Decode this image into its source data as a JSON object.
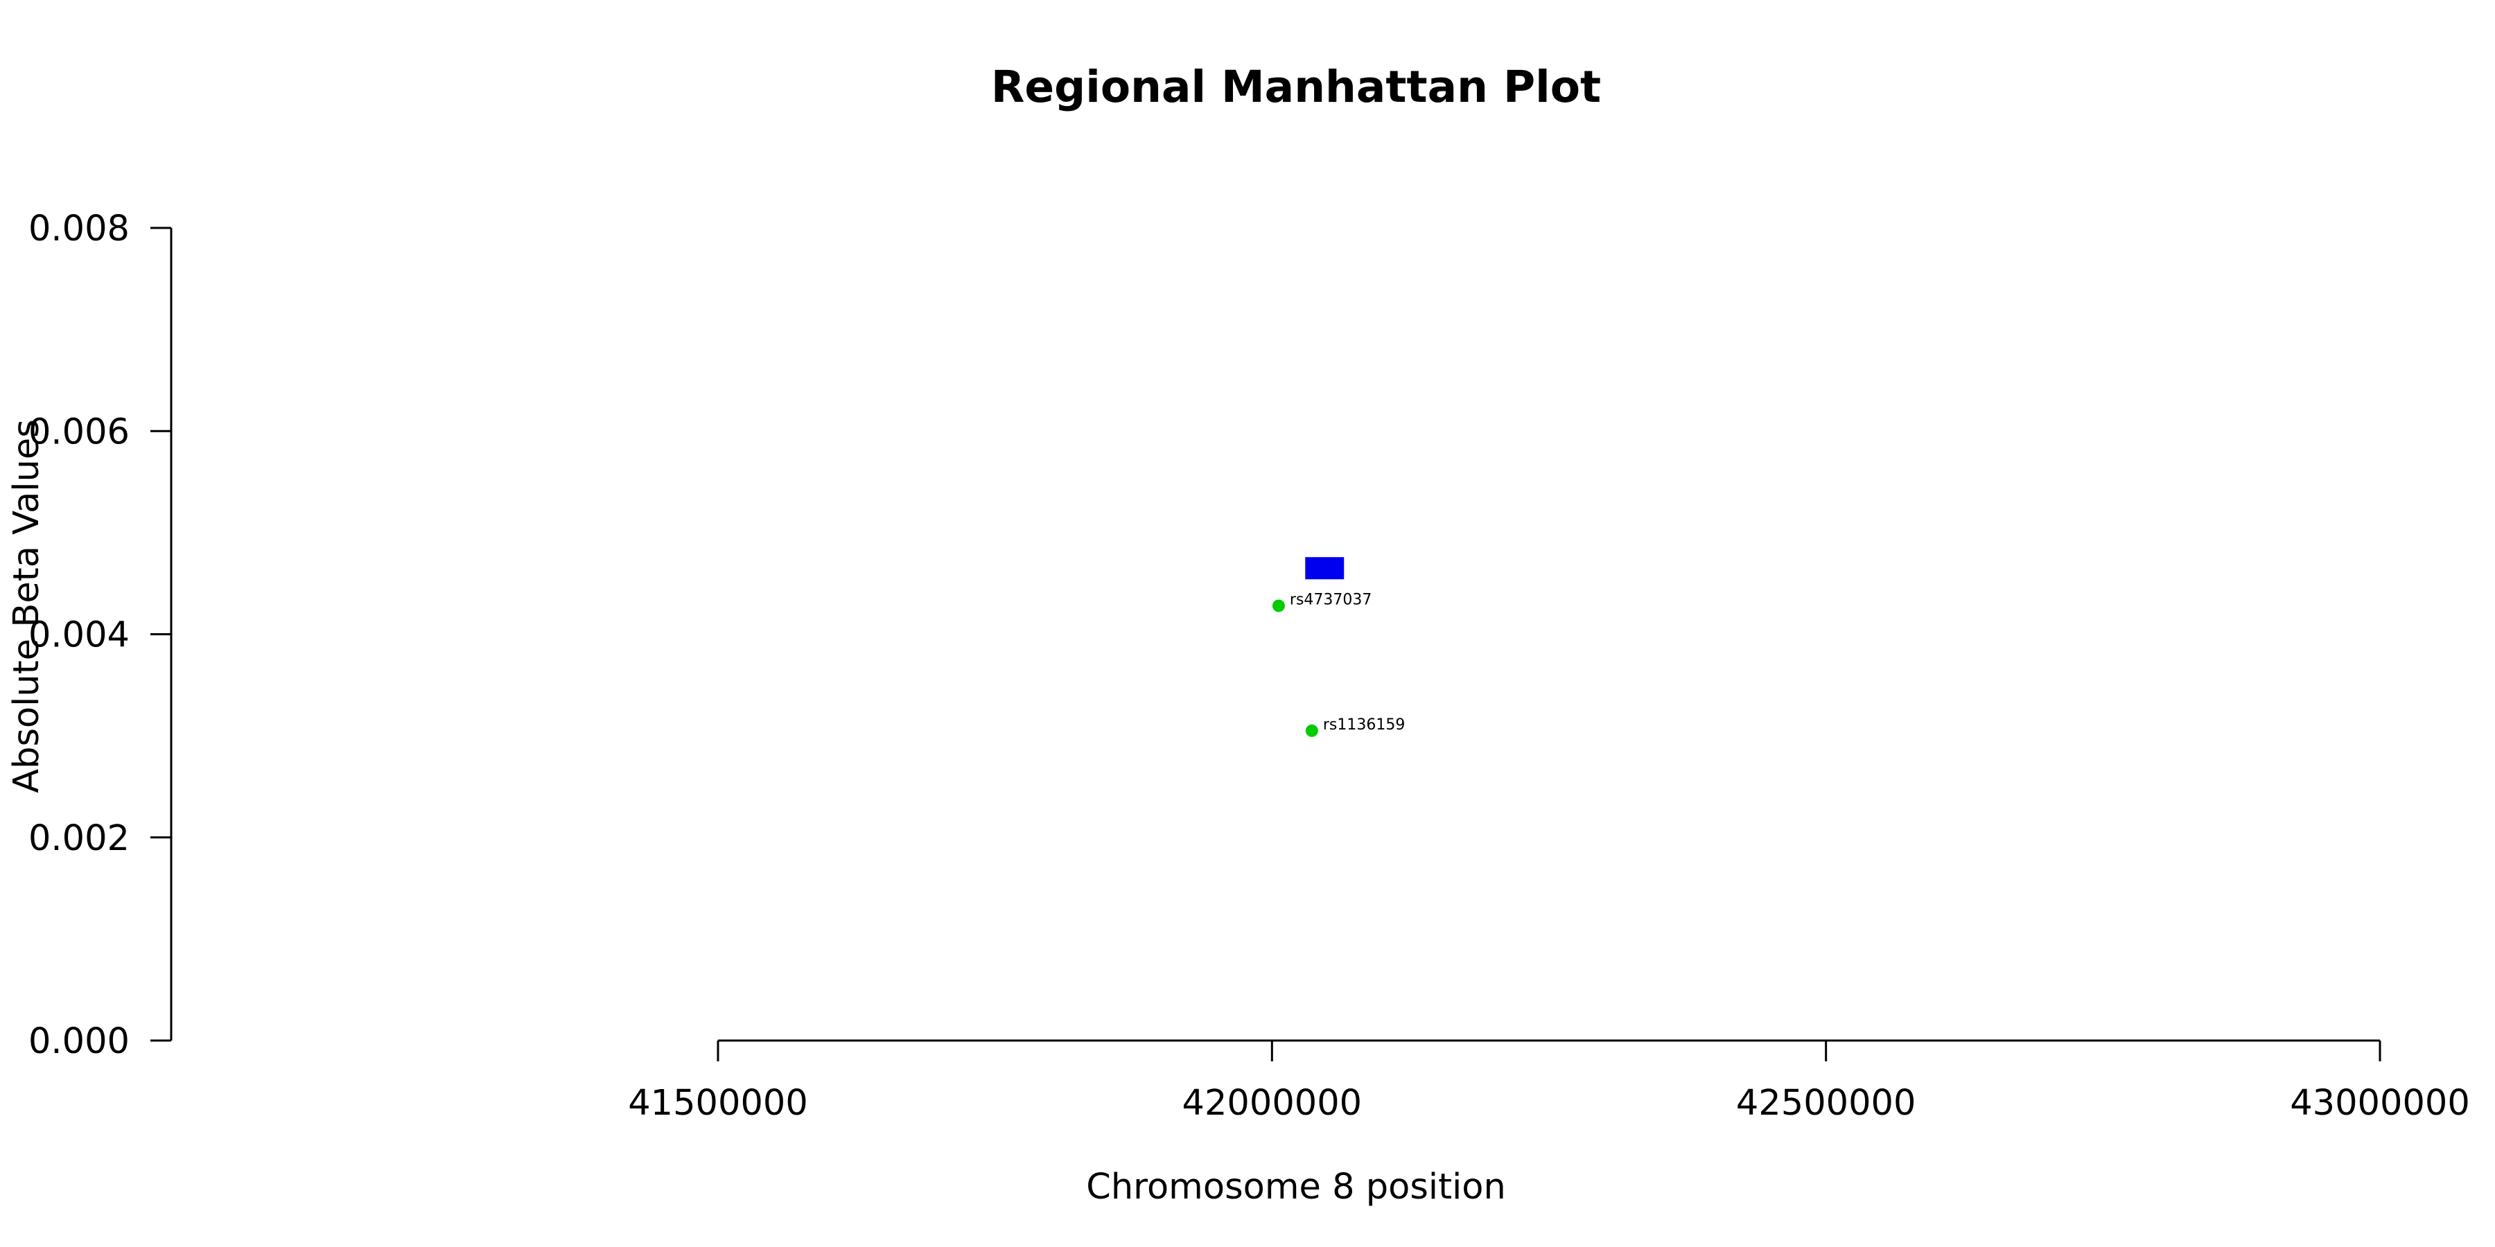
{
  "chart_data": {
    "type": "scatter",
    "title": "Regional Manhattan Plot",
    "xlabel": "Chromosome 8 position",
    "ylabel": "Absolute Beta Values",
    "xlim": [
      41500000,
      43000000
    ],
    "ylim": [
      0,
      0.008
    ],
    "x_ticks": [
      41500000,
      42000000,
      42500000,
      43000000
    ],
    "x_tick_labels": [
      "41500000",
      "42000000",
      "42500000",
      "43000000"
    ],
    "y_ticks": [
      0,
      0.002,
      0.004,
      0.006,
      0.008
    ],
    "y_tick_labels": [
      "0.000",
      "0.002",
      "0.004",
      "0.006",
      "0.008"
    ],
    "grid": false,
    "points": [
      {
        "label": "rs4737037",
        "x": 42006000,
        "y": 0.00428,
        "color": "#00cc00"
      },
      {
        "label": "rs1136159",
        "x": 42036000,
        "y": 0.00305,
        "color": "#00cc00"
      }
    ],
    "region_markers": [
      {
        "x_start": 42030000,
        "x_end": 42065000,
        "y": 0.00465,
        "color": "#0000ee"
      }
    ]
  }
}
